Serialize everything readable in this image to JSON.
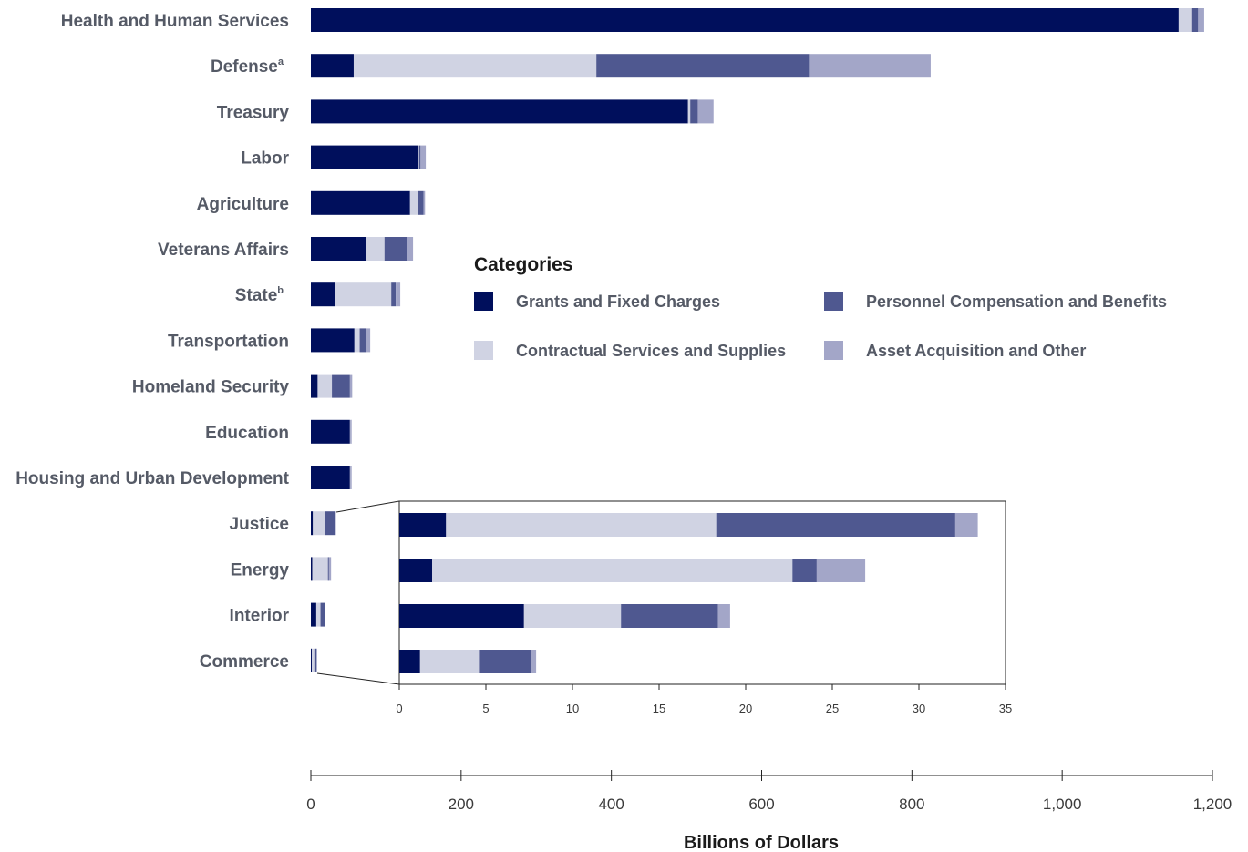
{
  "chart_data": {
    "type": "bar",
    "orientation": "horizontal",
    "stacked": true,
    "categories": [
      "Health and Human Services",
      "Defense",
      "Treasury",
      "Labor",
      "Agriculture",
      "Veterans Affairs",
      "State",
      "Transportation",
      "Homeland Security",
      "Education",
      "Housing and Urban Development",
      "Justice",
      "Energy",
      "Interior",
      "Commerce"
    ],
    "footnote_marks": {
      "Defense": "a",
      "State": "b"
    },
    "series": [
      {
        "name": "Grants and Fixed Charges",
        "values": [
          1155,
          57,
          502,
          142,
          132,
          73,
          32,
          58,
          9,
          52,
          52,
          2.7,
          1.9,
          7.2,
          1.2
        ]
      },
      {
        "name": "Contractual Services and Supplies",
        "values": [
          18,
          323,
          3,
          2,
          10,
          25,
          75,
          7,
          19,
          1,
          1,
          15.6,
          20.8,
          5.6,
          3.4
        ]
      },
      {
        "name": "Personnel Compensation and Benefits",
        "values": [
          8,
          283,
          10,
          2,
          8,
          30,
          6,
          8,
          24,
          0.5,
          0.5,
          13.8,
          1.4,
          5.6,
          3.0
        ]
      },
      {
        "name": "Asset Acquisition and Other",
        "values": [
          8,
          162,
          21,
          7,
          2,
          8,
          6,
          6,
          3,
          0.5,
          0.5,
          1.3,
          2.8,
          0.7,
          0.3
        ]
      }
    ],
    "colors": [
      "#000f5c",
      "#d0d3e3",
      "#4f5890",
      "#a3a6c8"
    ],
    "xlabel": "Billions of Dollars",
    "xlim": [
      0,
      1200
    ],
    "xticks": [
      "0",
      "200",
      "400",
      "600",
      "800",
      "1,000",
      "1,200"
    ],
    "inset": {
      "categories": [
        "Justice",
        "Energy",
        "Interior",
        "Commerce"
      ],
      "xlim": [
        0,
        35
      ],
      "xticks": [
        "0",
        "5",
        "10",
        "15",
        "20",
        "25",
        "30",
        "35"
      ]
    },
    "legend": {
      "title": "Categories",
      "placement": "center-right"
    }
  }
}
